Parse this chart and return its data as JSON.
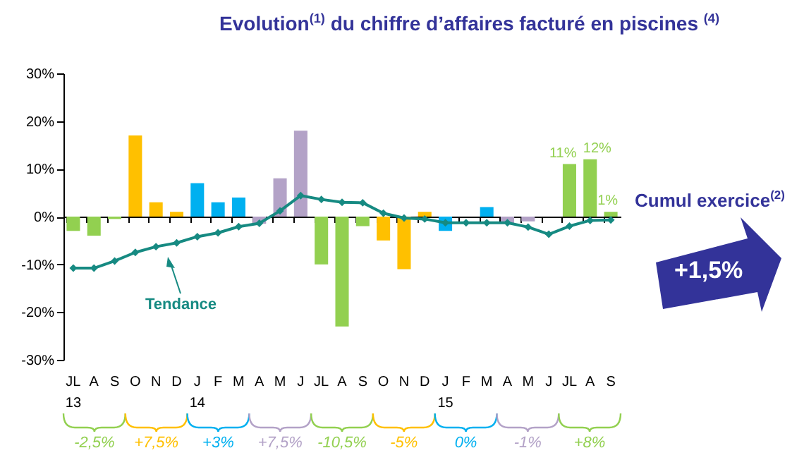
{
  "chart_data": {
    "type": "bar",
    "title": "Evolution$^{(1)}$ du chiffre d’affaires facturé en piscines $^{(4)}$",
    "categories": [
      "JL 13",
      "A",
      "S",
      "O",
      "N",
      "D",
      "J 14",
      "F",
      "M",
      "A",
      "M",
      "J",
      "JL",
      "A",
      "S",
      "O",
      "N",
      "D",
      "J 15",
      "F",
      "M",
      "A",
      "M",
      "J",
      "JL",
      "A",
      "S"
    ],
    "series": [
      {
        "type": "bar",
        "colors": [
          "#92d050",
          "#92d050",
          "#92d050",
          "#ffc000",
          "#ffc000",
          "#ffc000",
          "#00b0f0",
          "#00b0f0",
          "#00b0f0",
          "#b3a2c7",
          "#b3a2c7",
          "#b3a2c7",
          "#92d050",
          "#92d050",
          "#92d050",
          "#ffc000",
          "#ffc000",
          "#ffc000",
          "#00b0f0",
          "#00b0f0",
          "#00b0f0",
          "#b3a2c7",
          "#b3a2c7",
          "#b3a2c7",
          "#92d050",
          "#92d050",
          "#92d050"
        ],
        "values": [
          -3,
          -4,
          -0.5,
          17,
          3,
          1,
          7,
          3,
          4,
          -1.5,
          8,
          18,
          -10,
          -23,
          -2,
          -5,
          -11,
          1,
          -3,
          0,
          2,
          -1.5,
          -1,
          0,
          11,
          12,
          1
        ],
        "value_labels": [
          null,
          null,
          null,
          null,
          null,
          null,
          null,
          null,
          null,
          null,
          null,
          null,
          null,
          null,
          null,
          null,
          null,
          null,
          null,
          null,
          null,
          null,
          null,
          null,
          "11%",
          "12%",
          "1%"
        ]
      },
      {
        "type": "line",
        "name": "Tendance",
        "color": "#168a82",
        "values": [
          -10.8,
          -10.8,
          -9.3,
          -7.5,
          -6.3,
          -5.5,
          -4.2,
          -3.4,
          -2.1,
          -1.4,
          1.2,
          4.4,
          3.6,
          3,
          2.9,
          0.7,
          -0.3,
          -0.5,
          -1.3,
          -1.3,
          -1.3,
          -1.3,
          -2.2,
          -3.7,
          -2,
          -0.8,
          -0.7
        ]
      }
    ],
    "ylim": [
      -30,
      30
    ],
    "yticks": [
      {
        "value": -30,
        "label": "-30%"
      },
      {
        "value": -20,
        "label": "-20%"
      },
      {
        "value": -10,
        "label": "-10%"
      },
      {
        "value": 0,
        "label": "0%"
      },
      {
        "value": 10,
        "label": "10%"
      },
      {
        "value": 20,
        "label": "20%"
      },
      {
        "value": 30,
        "label": "30%"
      }
    ],
    "marker": "diamond",
    "annotations": [
      "-2,5%",
      "+7,5%",
      "+3%",
      "+7,5%",
      "-10,5%",
      "-5%",
      "0%",
      "-1%",
      "+8%",
      "Cumul exercice$^{(2)}$",
      "+1,5%"
    ]
  }
}
